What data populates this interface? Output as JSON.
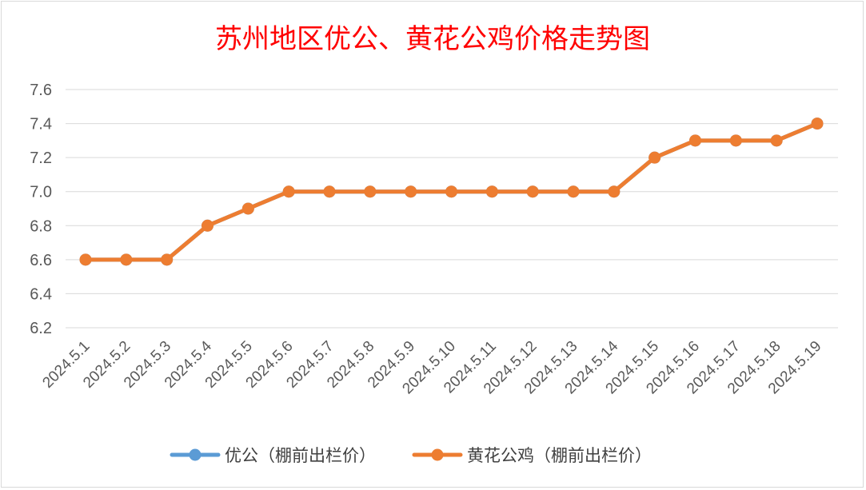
{
  "chart_data": {
    "type": "line",
    "title": "苏州地区优公、黄花公鸡价格走势图",
    "categories": [
      "2024.5.1",
      "2024.5.2",
      "2024.5.3",
      "2024.5.4",
      "2024.5.5",
      "2024.5.6",
      "2024.5.7",
      "2024.5.8",
      "2024.5.9",
      "2024.5.10",
      "2024.5.11",
      "2024.5.12",
      "2024.5.13",
      "2024.5.14",
      "2024.5.15",
      "2024.5.16",
      "2024.5.17",
      "2024.5.18",
      "2024.5.19"
    ],
    "series": [
      {
        "name": "优公（棚前出栏价）",
        "color": "#5b9bd5",
        "values": [
          6.6,
          6.6,
          6.6,
          6.8,
          6.9,
          7.0,
          7.0,
          7.0,
          7.0,
          7.0,
          7.0,
          7.0,
          7.0,
          7.0,
          7.2,
          7.3,
          7.3,
          7.3,
          7.4
        ]
      },
      {
        "name": "黄花公鸡（棚前出栏价）",
        "color": "#ed7d31",
        "values": [
          6.6,
          6.6,
          6.6,
          6.8,
          6.9,
          7.0,
          7.0,
          7.0,
          7.0,
          7.0,
          7.0,
          7.0,
          7.0,
          7.0,
          7.2,
          7.3,
          7.3,
          7.3,
          7.4
        ]
      }
    ],
    "ylim": [
      6.2,
      7.6
    ],
    "yticks": [
      "6.2",
      "6.4",
      "6.6",
      "6.8",
      "7.0",
      "7.2",
      "7.4",
      "7.6"
    ],
    "grid": true,
    "legend_position": "bottom",
    "xlabel": "",
    "ylabel": ""
  }
}
